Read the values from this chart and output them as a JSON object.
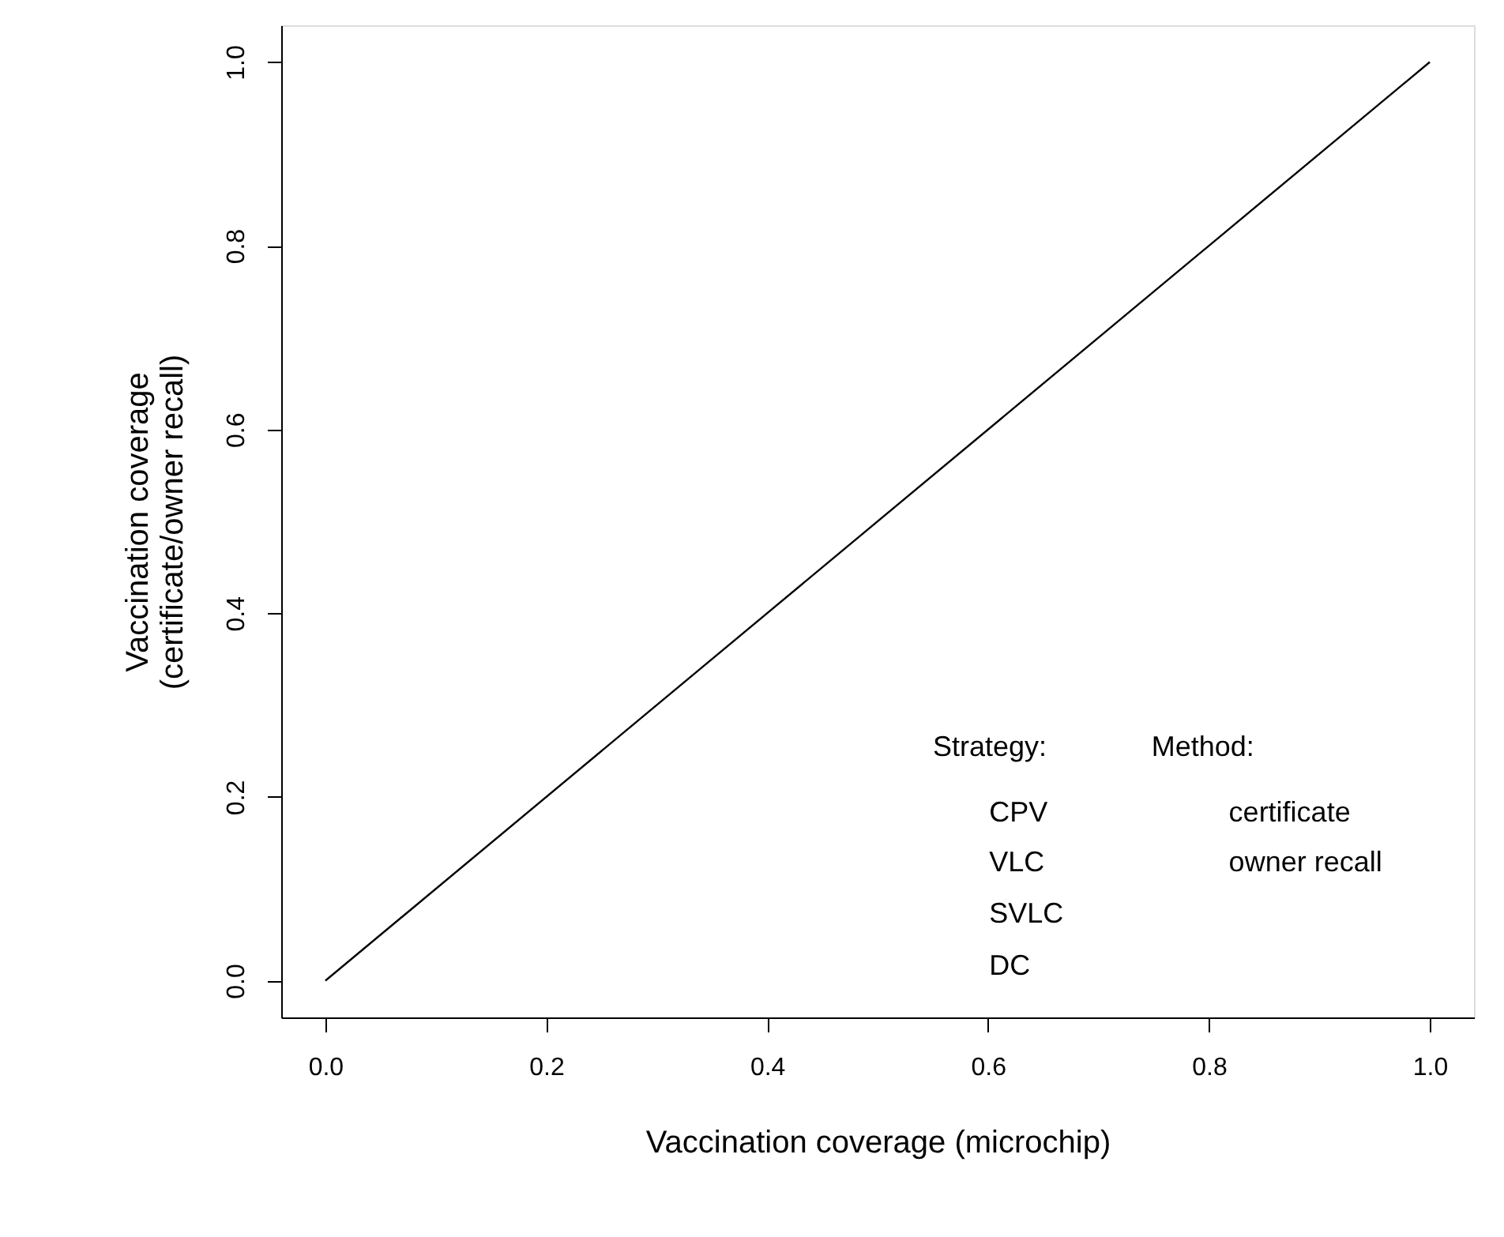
{
  "chart_data": {
    "type": "line",
    "xlabel": "Vaccination coverage (microchip)",
    "ylabel": "Vaccination coverage\n(certificate/owner recall)",
    "x": [
      0,
      1
    ],
    "series": [
      {
        "color": "#000000",
        "values": [
          0,
          1
        ]
      }
    ],
    "xlim": [
      -0.04,
      1.04
    ],
    "ylim": [
      -0.04,
      1.04
    ],
    "xticks": [
      {
        "value": 0,
        "label": "0.0"
      },
      0.2,
      0.4,
      0.6,
      0.8,
      {
        "value": 1,
        "label": "1.0"
      }
    ],
    "yticks": [
      {
        "value": 0,
        "label": "0.0"
      },
      0.2,
      0.4,
      0.6,
      0.8,
      {
        "value": 1,
        "label": "1.0"
      }
    ],
    "annotations": [
      "Strategy:",
      "CPV",
      "VLC",
      "SVLC",
      "DC",
      "Method:",
      "certificate",
      "owner recall"
    ],
    "grid": false,
    "marker": "none",
    "line_style": "solid"
  }
}
